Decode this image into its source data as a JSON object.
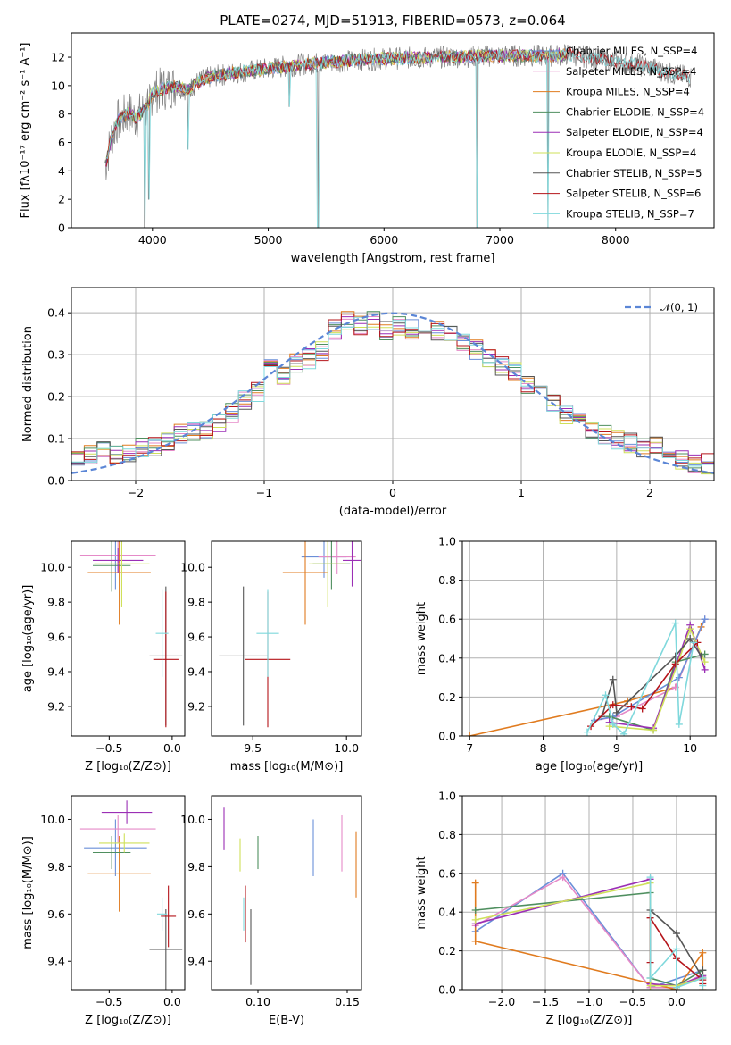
{
  "chart_data": [
    {
      "type": "line",
      "title": "PLATE=0274, MJD=51913, FIBERID=0573, z=0.064",
      "xlabel": "wavelength [Angstrom, rest frame]",
      "ylabel": "Flux [fλ10⁻¹⁷ erg cm⁻² s⁻¹ A⁻¹]",
      "xlim": [
        3300,
        8850
      ],
      "ylim": [
        0,
        13.7
      ],
      "xticks": [
        4000,
        5000,
        6000,
        7000,
        8000
      ],
      "yticks": [
        0,
        2,
        4,
        6,
        8,
        10,
        12
      ],
      "grid": false,
      "legend_position": "upper-right",
      "series": [
        {
          "name": "Chabrier MILES, N_SSP=4",
          "color": "#6a8fd8"
        },
        {
          "name": "Salpeter MILES, N_SSP=4",
          "color": "#e58ac8"
        },
        {
          "name": "Kroupa MILES, N_SSP=4",
          "color": "#e07b1f"
        },
        {
          "name": "Chabrier ELODIE, N_SSP=4",
          "color": "#4f8f5f"
        },
        {
          "name": "Salpeter ELODIE, N_SSP=4",
          "color": "#9b2fb5"
        },
        {
          "name": "Kroupa ELODIE, N_SSP=4",
          "color": "#cfe05a"
        },
        {
          "name": "Chabrier STELIB, N_SSP=5",
          "color": "#555555"
        },
        {
          "name": "Salpeter STELIB, N_SSP=6",
          "color": "#b5141a"
        },
        {
          "name": "Kroupa STELIB, N_SSP=7",
          "color": "#7fd8dc"
        }
      ],
      "continuum": {
        "x": [
          3600,
          3650,
          3700,
          3800,
          3850,
          3950,
          4000,
          4100,
          4200,
          4300,
          4400,
          4500,
          4700,
          5000,
          5300,
          5600,
          6000,
          6500,
          7000,
          7400,
          7600,
          8000,
          8300,
          8500,
          8650
        ],
        "y": [
          4.6,
          6.5,
          7.5,
          8.1,
          7.7,
          8.4,
          9.5,
          9.8,
          10.0,
          9.7,
          10.3,
          10.6,
          10.9,
          11.2,
          11.5,
          11.7,
          11.9,
          12.0,
          12.1,
          12.1,
          12.2,
          11.7,
          11.3,
          10.8,
          10.6
        ]
      },
      "absorption_spikes": [
        {
          "x": 3933,
          "y": 0.0
        },
        {
          "x": 3968,
          "y": 2.0
        },
        {
          "x": 4305,
          "y": 5.5
        },
        {
          "x": 5180,
          "y": 8.5
        },
        {
          "x": 5430,
          "y": 0.0
        },
        {
          "x": 6800,
          "y": 0.0
        },
        {
          "x": 7415,
          "y": 0.0
        }
      ]
    },
    {
      "type": "histogram",
      "xlabel": "(data-model)/error",
      "ylabel": "Normed distribution",
      "xlim": [
        -2.5,
        2.5
      ],
      "ylim": [
        0,
        0.46
      ],
      "xticks": [
        -2,
        -1,
        0,
        1,
        2
      ],
      "yticks": [
        0.0,
        0.1,
        0.2,
        0.3,
        0.4
      ],
      "grid": true,
      "legend_position": "upper-right",
      "reference_curve": {
        "name": "𝒩(0, 1)",
        "color": "#5b86d6"
      },
      "bin_edges": [
        -2.5,
        -2.4,
        -2.3,
        -2.2,
        -2.1,
        -2.0,
        -1.9,
        -1.8,
        -1.7,
        -1.6,
        -1.5,
        -1.4,
        -1.3,
        -1.2,
        -1.1,
        -1.0,
        -0.9,
        -0.8,
        -0.7,
        -0.6,
        -0.5,
        -0.4,
        -0.3,
        -0.2,
        -0.1,
        0.0,
        0.1,
        0.2,
        0.3,
        0.4,
        0.5,
        0.6,
        0.7,
        0.8,
        0.9,
        1.0,
        1.1,
        1.2,
        1.3,
        1.4,
        1.5,
        1.6,
        1.7,
        1.8,
        1.9,
        2.0,
        2.1,
        2.2,
        2.3,
        2.4,
        2.5
      ],
      "mean_heights": [
        0.05,
        0.065,
        0.07,
        0.065,
        0.06,
        0.08,
        0.08,
        0.09,
        0.11,
        0.12,
        0.12,
        0.14,
        0.16,
        0.19,
        0.21,
        0.27,
        0.25,
        0.28,
        0.29,
        0.31,
        0.36,
        0.38,
        0.37,
        0.38,
        0.36,
        0.37,
        0.36,
        0.37,
        0.36,
        0.35,
        0.33,
        0.31,
        0.29,
        0.27,
        0.26,
        0.23,
        0.22,
        0.19,
        0.16,
        0.14,
        0.12,
        0.11,
        0.1,
        0.09,
        0.08,
        0.08,
        0.07,
        0.05,
        0.04,
        0.04
      ]
    },
    {
      "type": "errorbar",
      "xlabel": "Z [log₁₀(Z/Z⊙)]",
      "ylabel": "age  [log₁₀(age/yr)]",
      "xlim": [
        -0.8,
        0.1
      ],
      "ylim": [
        9.03,
        10.15
      ],
      "xticks": [
        -0.5,
        0.0
      ],
      "yticks": [
        9.2,
        9.4,
        9.6,
        9.8,
        10.0
      ],
      "points": [
        {
          "x": -0.45,
          "y": 10.07,
          "xerr": 0.25,
          "yerr": 0.2,
          "color": "#6a8fd8"
        },
        {
          "x": -0.43,
          "y": 10.07,
          "xerr": 0.3,
          "yerr": 0.1,
          "color": "#e58ac8"
        },
        {
          "x": -0.42,
          "y": 9.97,
          "xerr": 0.25,
          "yerr": 0.3,
          "color": "#e07b1f"
        },
        {
          "x": -0.48,
          "y": 10.01,
          "xerr": 0.15,
          "yerr": 0.15,
          "color": "#4f8f5f"
        },
        {
          "x": -0.43,
          "y": 10.04,
          "xerr": 0.2,
          "yerr": 0.07,
          "color": "#9b2fb5"
        },
        {
          "x": -0.4,
          "y": 10.02,
          "xerr": 0.22,
          "yerr": 0.25,
          "color": "#cfe05a"
        },
        {
          "x": -0.05,
          "y": 9.49,
          "xerr": 0.13,
          "yerr": 0.4,
          "color": "#555555"
        },
        {
          "x": -0.05,
          "y": 9.47,
          "xerr": 0.1,
          "yerr": 0.39,
          "color": "#b5141a"
        },
        {
          "x": -0.08,
          "y": 9.62,
          "xerr": 0.05,
          "yerr": 0.25,
          "color": "#7fd8dc"
        }
      ]
    },
    {
      "type": "errorbar",
      "xlabel": "mass [log₁₀(M/M⊙)]",
      "xlim": [
        9.28,
        10.08
      ],
      "ylim": [
        9.03,
        10.15
      ],
      "xticks": [
        9.5,
        10.0
      ],
      "yticks": [
        9.2,
        9.4,
        9.6,
        9.8,
        10.0
      ],
      "points": [
        {
          "x": 9.88,
          "y": 10.06,
          "xerr": 0.12,
          "yerr": 0.12,
          "color": "#6a8fd8"
        },
        {
          "x": 9.95,
          "y": 10.06,
          "xerr": 0.1,
          "yerr": 0.1,
          "color": "#e58ac8"
        },
        {
          "x": 9.78,
          "y": 9.97,
          "xerr": 0.12,
          "yerr": 0.3,
          "color": "#e07b1f"
        },
        {
          "x": 9.92,
          "y": 10.02,
          "xerr": 0.1,
          "yerr": 0.15,
          "color": "#4f8f5f"
        },
        {
          "x": 10.03,
          "y": 10.04,
          "xerr": 0.05,
          "yerr": 0.15,
          "color": "#9b2fb5"
        },
        {
          "x": 9.9,
          "y": 10.02,
          "xerr": 0.1,
          "yerr": 0.25,
          "color": "#cfe05a"
        },
        {
          "x": 9.45,
          "y": 9.49,
          "xerr": 0.13,
          "yerr": 0.4,
          "color": "#555555"
        },
        {
          "x": 9.58,
          "y": 9.47,
          "xerr": 0.12,
          "yerr": 0.39,
          "color": "#b5141a"
        },
        {
          "x": 9.58,
          "y": 9.62,
          "xerr": 0.06,
          "yerr": 0.25,
          "color": "#7fd8dc"
        }
      ]
    },
    {
      "type": "line",
      "xlabel": "age  [log₁₀(age/yr)]",
      "ylabel": "mass weight",
      "xlim": [
        6.9,
        10.35
      ],
      "ylim": [
        0,
        1.0
      ],
      "xticks": [
        7,
        8,
        9,
        10
      ],
      "yticks": [
        0.0,
        0.2,
        0.4,
        0.6,
        0.8,
        1.0
      ],
      "grid": true,
      "series": [
        {
          "color": "#e07b1f",
          "x": [
            7.0,
            9.15,
            9.8,
            10.15
          ],
          "y": [
            0.0,
            0.18,
            0.25,
            0.56
          ]
        },
        {
          "color": "#e58ac8",
          "x": [
            8.7,
            9.0,
            9.8,
            10.2
          ],
          "y": [
            0.08,
            0.1,
            0.25,
            0.6
          ]
        },
        {
          "color": "#6a8fd8",
          "x": [
            8.7,
            8.95,
            9.85,
            10.2
          ],
          "y": [
            0.08,
            0.1,
            0.3,
            0.6
          ]
        },
        {
          "color": "#4f8f5f",
          "x": [
            8.9,
            9.5,
            9.8,
            10.2
          ],
          "y": [
            0.1,
            0.03,
            0.38,
            0.42
          ]
        },
        {
          "color": "#9b2fb5",
          "x": [
            8.9,
            9.5,
            10.0,
            10.2
          ],
          "y": [
            0.07,
            0.04,
            0.57,
            0.34
          ]
        },
        {
          "color": "#cfe05a",
          "x": [
            8.9,
            9.5,
            10.0,
            10.2
          ],
          "y": [
            0.05,
            0.03,
            0.55,
            0.38
          ]
        },
        {
          "color": "#555555",
          "x": [
            8.8,
            8.95,
            9.0,
            9.8,
            10.0,
            10.15
          ],
          "y": [
            0.1,
            0.29,
            0.12,
            0.41,
            0.5,
            0.41
          ]
        },
        {
          "color": "#b5141a",
          "x": [
            8.65,
            8.95,
            9.2,
            9.35,
            9.8,
            10.1
          ],
          "y": [
            0.05,
            0.16,
            0.15,
            0.14,
            0.37,
            0.48
          ]
        },
        {
          "color": "#7fd8dc",
          "x": [
            8.6,
            8.85,
            8.95,
            9.1,
            9.8,
            9.85,
            10.05
          ],
          "y": [
            0.02,
            0.21,
            0.06,
            0.01,
            0.58,
            0.06,
            0.48
          ]
        }
      ]
    },
    {
      "type": "errorbar",
      "xlabel": "Z [log₁₀(Z/Z⊙)]",
      "ylabel": "mass [log₁₀(M/M⊙)]",
      "xlim": [
        -0.8,
        0.1
      ],
      "ylim": [
        9.28,
        10.1
      ],
      "xticks": [
        -0.5,
        0.0
      ],
      "yticks": [
        9.4,
        9.6,
        9.8,
        10.0
      ],
      "points": [
        {
          "x": -0.45,
          "y": 9.88,
          "xerr": 0.25,
          "yerr": 0.12,
          "color": "#6a8fd8"
        },
        {
          "x": -0.43,
          "y": 9.96,
          "xerr": 0.3,
          "yerr": 0.06,
          "color": "#e58ac8"
        },
        {
          "x": -0.42,
          "y": 9.77,
          "xerr": 0.25,
          "yerr": 0.16,
          "color": "#e07b1f"
        },
        {
          "x": -0.48,
          "y": 9.86,
          "xerr": 0.15,
          "yerr": 0.07,
          "color": "#4f8f5f"
        },
        {
          "x": -0.36,
          "y": 10.03,
          "xerr": 0.2,
          "yerr": 0.05,
          "color": "#9b2fb5"
        },
        {
          "x": -0.38,
          "y": 9.9,
          "xerr": 0.2,
          "yerr": 0.04,
          "color": "#cfe05a"
        },
        {
          "x": -0.05,
          "y": 9.45,
          "xerr": 0.13,
          "yerr": 0.17,
          "color": "#555555"
        },
        {
          "x": -0.03,
          "y": 9.59,
          "xerr": 0.06,
          "yerr": 0.13,
          "color": "#b5141a"
        },
        {
          "x": -0.08,
          "y": 9.6,
          "xerr": 0.04,
          "yerr": 0.07,
          "color": "#7fd8dc"
        }
      ]
    },
    {
      "type": "errorbar",
      "xlabel": "E(B-V)",
      "xlim": [
        0.074,
        0.158
      ],
      "ylim": [
        9.28,
        10.1
      ],
      "xticks": [
        0.1,
        0.15
      ],
      "yticks": [
        9.4,
        9.6,
        9.8,
        10.0
      ],
      "points": [
        {
          "x": 0.131,
          "y": 9.88,
          "xerr": 0.0,
          "yerr": 0.12,
          "color": "#6a8fd8"
        },
        {
          "x": 0.147,
          "y": 9.9,
          "xerr": 0.0,
          "yerr": 0.12,
          "color": "#e58ac8"
        },
        {
          "x": 0.155,
          "y": 9.81,
          "xerr": 0.0,
          "yerr": 0.14,
          "color": "#e07b1f"
        },
        {
          "x": 0.1,
          "y": 9.86,
          "xerr": 0.0,
          "yerr": 0.07,
          "color": "#4f8f5f"
        },
        {
          "x": 0.081,
          "y": 9.96,
          "xerr": 0.0,
          "yerr": 0.09,
          "color": "#9b2fb5"
        },
        {
          "x": 0.09,
          "y": 9.85,
          "xerr": 0.0,
          "yerr": 0.07,
          "color": "#cfe05a"
        },
        {
          "x": 0.096,
          "y": 9.46,
          "xerr": 0.0,
          "yerr": 0.16,
          "color": "#555555"
        },
        {
          "x": 0.093,
          "y": 9.6,
          "xerr": 0.0,
          "yerr": 0.12,
          "color": "#b5141a"
        },
        {
          "x": 0.092,
          "y": 9.6,
          "xerr": 0.0,
          "yerr": 0.07,
          "color": "#7fd8dc"
        }
      ]
    },
    {
      "type": "line",
      "xlabel": "Z [log₁₀(Z/Z⊙)]",
      "ylabel": "mass weight",
      "xlim": [
        -2.45,
        0.45
      ],
      "ylim": [
        0,
        1.0
      ],
      "xticks": [
        -2.0,
        -1.5,
        -1.0,
        -0.5,
        0.0
      ],
      "yticks": [
        0.0,
        0.2,
        0.4,
        0.6,
        0.8,
        1.0
      ],
      "grid": true,
      "series": [
        {
          "color": "#6a8fd8",
          "x": [
            -2.3,
            -1.3,
            -0.3,
            0.3
          ],
          "y": [
            0.3,
            0.6,
            0.01,
            0.1
          ]
        },
        {
          "color": "#e58ac8",
          "x": [
            -2.3,
            -1.3,
            -0.3,
            0.0,
            0.3
          ],
          "y": [
            0.33,
            0.58,
            0.01,
            0.01,
            0.08
          ]
        },
        {
          "color": "#e07b1f",
          "x": [
            -2.3,
            -2.3,
            -2.3,
            0.0,
            0.3,
            0.3
          ],
          "y": [
            0.55,
            0.25,
            0.25,
            0.0,
            0.19,
            0.0
          ]
        },
        {
          "color": "#4f8f5f",
          "x": [
            -2.3,
            -0.3,
            -0.3,
            0.0,
            0.3
          ],
          "y": [
            0.41,
            0.5,
            0.06,
            0.02,
            0.1
          ]
        },
        {
          "color": "#9b2fb5",
          "x": [
            -2.3,
            -0.3,
            -0.3,
            0.0,
            0.3
          ],
          "y": [
            0.34,
            0.57,
            0.03,
            0.02,
            0.07
          ]
        },
        {
          "color": "#cfe05a",
          "x": [
            -2.3,
            -0.3,
            -0.3,
            0.0,
            0.3
          ],
          "y": [
            0.36,
            0.55,
            0.02,
            0.02,
            0.06
          ]
        },
        {
          "color": "#555555",
          "x": [
            -0.3,
            0.0,
            0.3,
            0.3,
            0.3
          ],
          "y": [
            0.41,
            0.29,
            0.06,
            0.08,
            0.1
          ]
        },
        {
          "color": "#b5141a",
          "x": [
            -0.3,
            -0.3,
            0.0,
            0.3,
            0.3
          ],
          "y": [
            0.14,
            0.37,
            0.16,
            0.05,
            0.03
          ]
        },
        {
          "color": "#7fd8dc",
          "x": [
            -0.3,
            -0.3,
            0.0,
            0.0,
            0.3,
            0.3
          ],
          "y": [
            0.58,
            0.06,
            0.21,
            0.01,
            0.06,
            0.02
          ]
        }
      ]
    }
  ]
}
